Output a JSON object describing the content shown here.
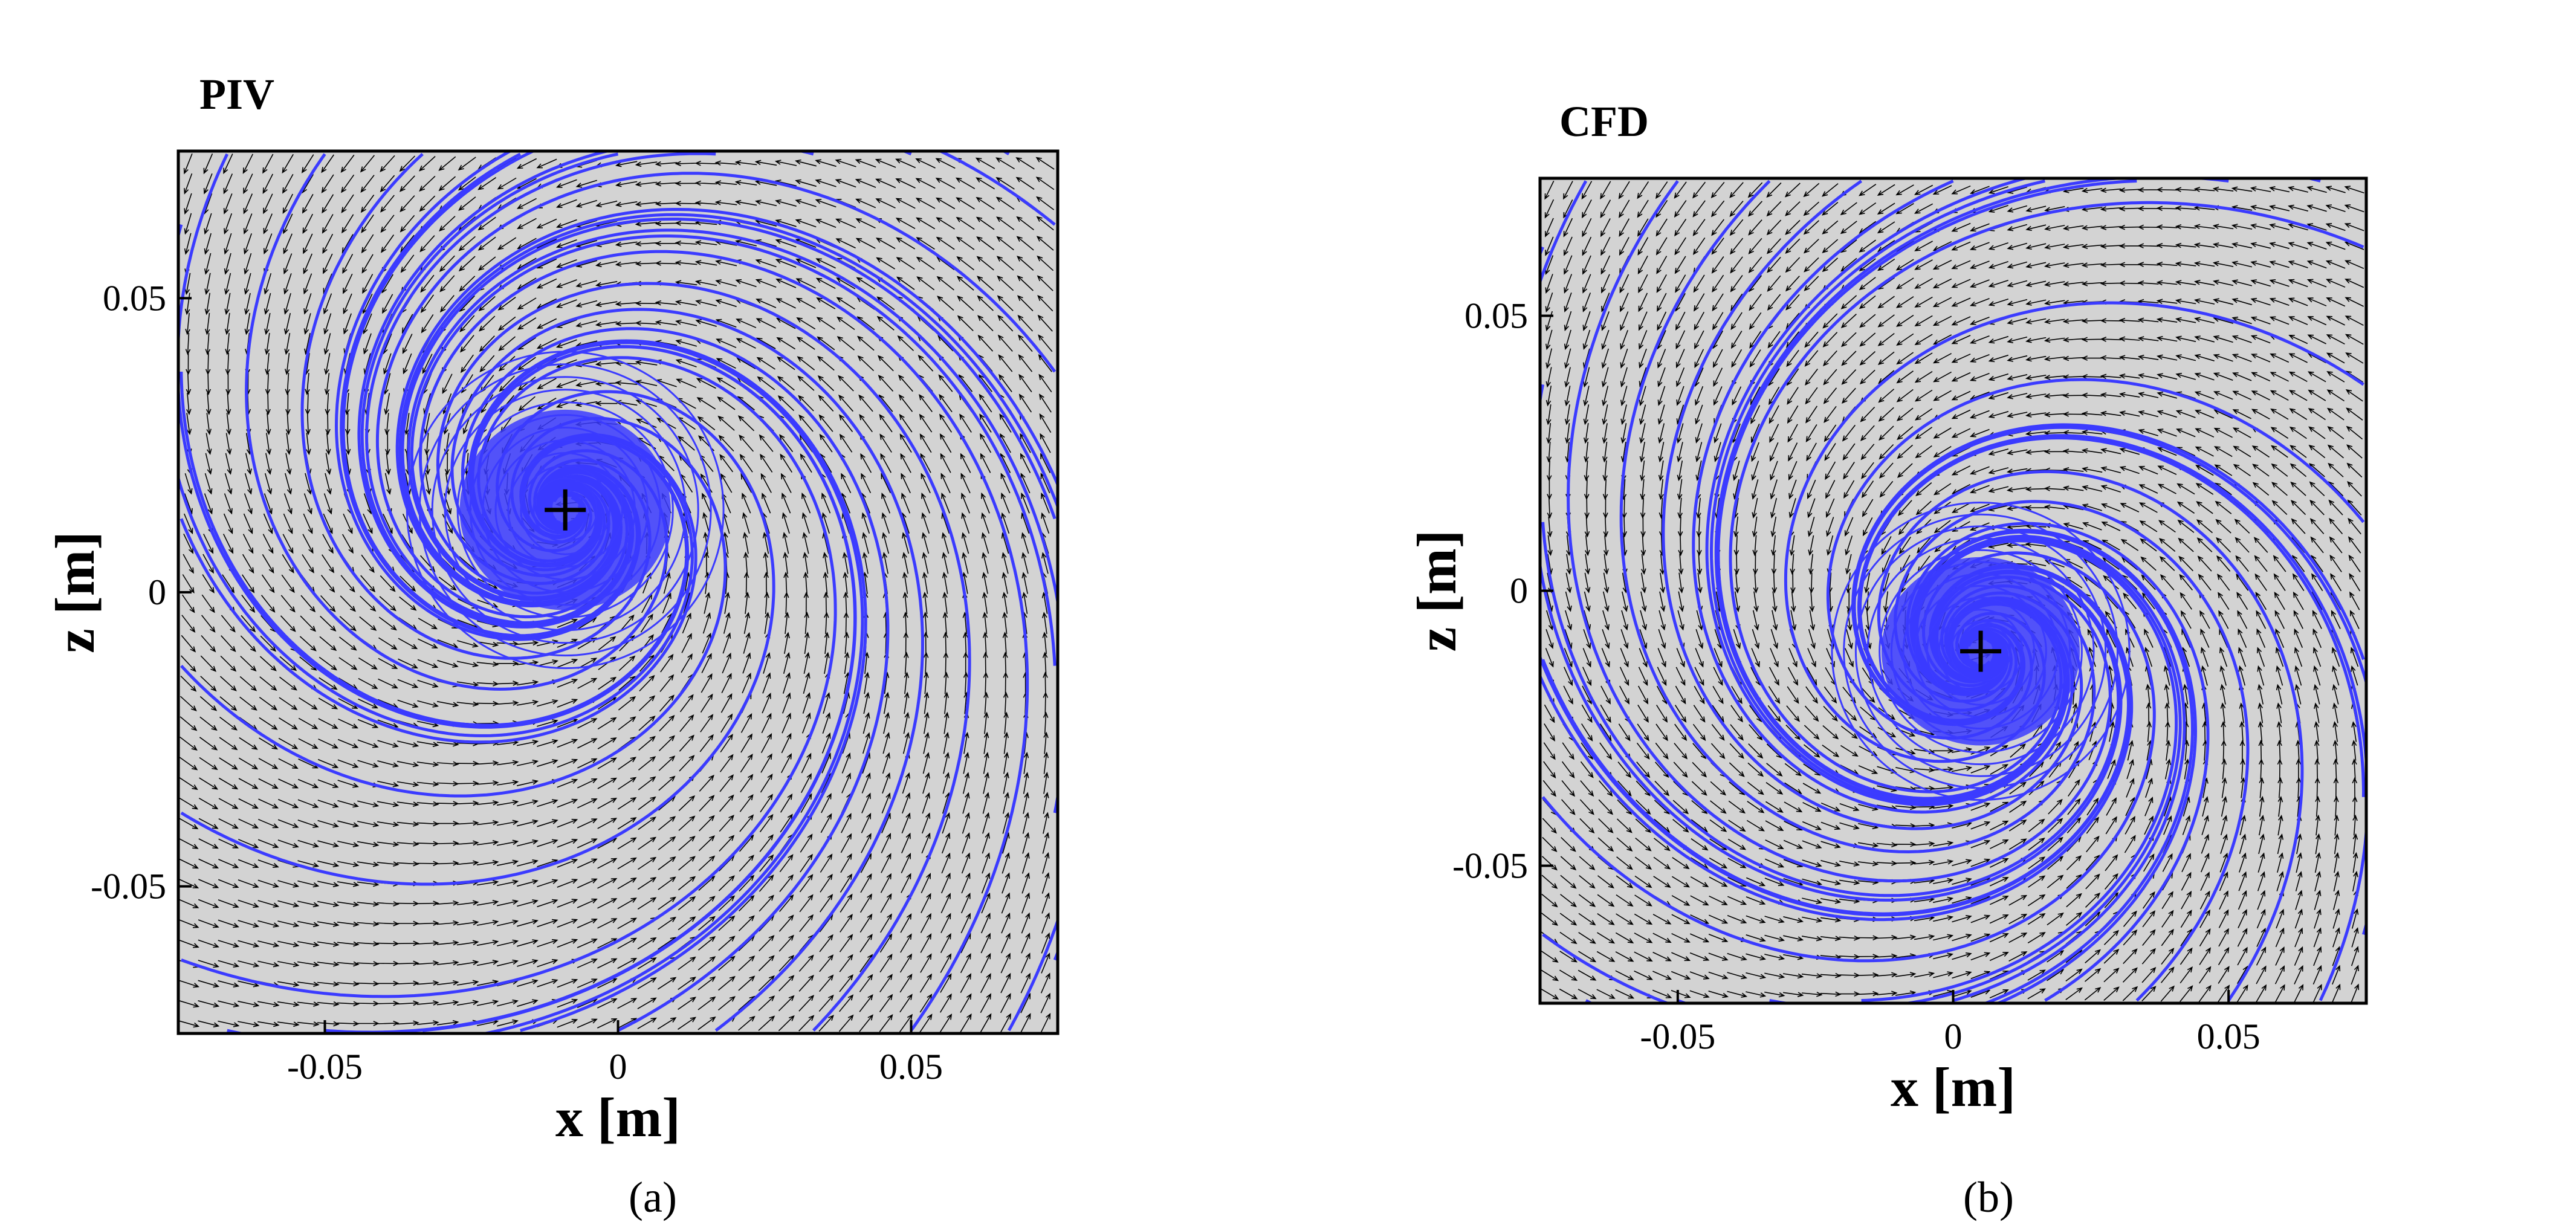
{
  "chart_data": [
    {
      "type": "vector-field",
      "panel_label": "PIV",
      "caption": "(a)",
      "xlabel": "x [m]",
      "ylabel": "z [m]",
      "xlim": [
        -0.075,
        0.075
      ],
      "ylim": [
        -0.075,
        0.075
      ],
      "xticks": [
        -0.05,
        0,
        0.05
      ],
      "xtick_labels": [
        "-0.05",
        "0",
        "0.05"
      ],
      "yticks": [
        -0.05,
        0,
        0.05
      ],
      "ytick_labels": [
        "-0.05",
        "0",
        "0.05"
      ],
      "vortex_center": {
        "x": -0.009,
        "z": 0.014
      },
      "background_color": "#d3d3d3",
      "vector_color": "#000000",
      "streamline_color": "#3b3bff",
      "grid": false
    },
    {
      "type": "vector-field",
      "panel_label": "CFD",
      "caption": "(b)",
      "xlabel": "x [m]",
      "ylabel": "z [m]",
      "xlim": [
        -0.075,
        0.075
      ],
      "ylim": [
        -0.075,
        0.075
      ],
      "xticks": [
        -0.05,
        0,
        0.05
      ],
      "xtick_labels": [
        "-0.05",
        "0",
        "0.05"
      ],
      "yticks": [
        -0.05,
        0,
        0.05
      ],
      "ytick_labels": [
        "-0.05",
        "0",
        "0.05"
      ],
      "vortex_center": {
        "x": 0.005,
        "z": -0.011
      },
      "background_color": "#d3d3d3",
      "vector_color": "#000000",
      "streamline_color": "#3b3bff",
      "grid": false
    }
  ]
}
